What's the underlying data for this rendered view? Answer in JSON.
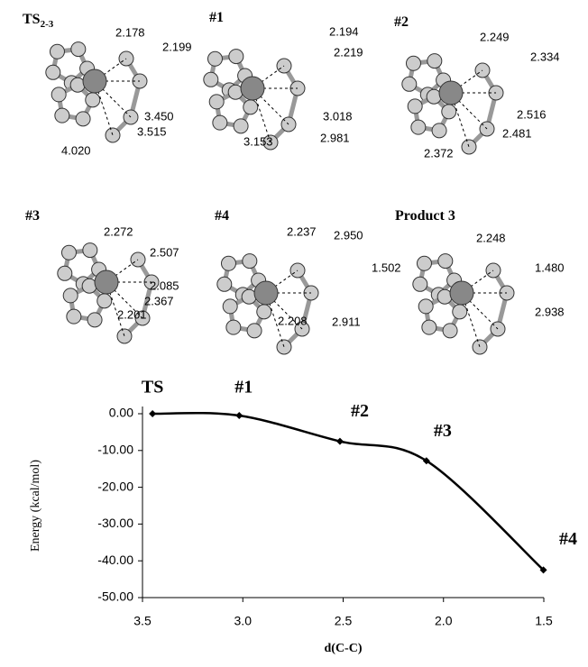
{
  "panels": [
    {
      "title": "TS",
      "title_subscript": "2-3",
      "distances": [
        "2.178",
        "2.199",
        "3.450",
        "3.515",
        "4.020"
      ]
    },
    {
      "title": "#1",
      "distances": [
        "2.194",
        "2.219",
        "3.018",
        "2.981",
        "3.153"
      ]
    },
    {
      "title": "#2",
      "distances": [
        "2.249",
        "2.334",
        "2.516",
        "2.481",
        "2.372"
      ]
    },
    {
      "title": "#3",
      "distances": [
        "2.272",
        "2.507",
        "2.085",
        "2.367",
        "2.201"
      ]
    },
    {
      "title": "#4",
      "distances": [
        "2.237",
        "2.950",
        "1.502",
        "2.208",
        "2.911"
      ]
    },
    {
      "title": "Product 3",
      "distances": [
        "2.248",
        "1.480",
        "2.938"
      ]
    }
  ],
  "chart_data": {
    "type": "line",
    "x_label": "d(C-C)",
    "y_label": "Energy (kcal/mol)",
    "x": [
      3.45,
      3.018,
      2.516,
      2.085,
      1.502
    ],
    "values": [
      0,
      -0.5,
      -7.5,
      -12.8,
      -42.5
    ],
    "point_labels": [
      "TS",
      "#1",
      "#2",
      "#3",
      "#4"
    ],
    "color": "#000000",
    "xlim": [
      3.5,
      1.5
    ],
    "xticks": [
      3.5,
      {
        "value": 3,
        "label": "3.0"
      },
      2.5,
      {
        "value": 2,
        "label": "2.0"
      },
      1.5
    ],
    "ylim": [
      -50,
      0
    ],
    "yticks": [
      {
        "value": 0,
        "label": "0.00"
      },
      {
        "value": -10,
        "label": "-10.00"
      },
      {
        "value": -20,
        "label": "-20.00"
      },
      {
        "value": -30,
        "label": "-30.00"
      },
      {
        "value": -40,
        "label": "-40.00"
      },
      {
        "value": -50,
        "label": "-50.00"
      }
    ],
    "grid": false
  }
}
